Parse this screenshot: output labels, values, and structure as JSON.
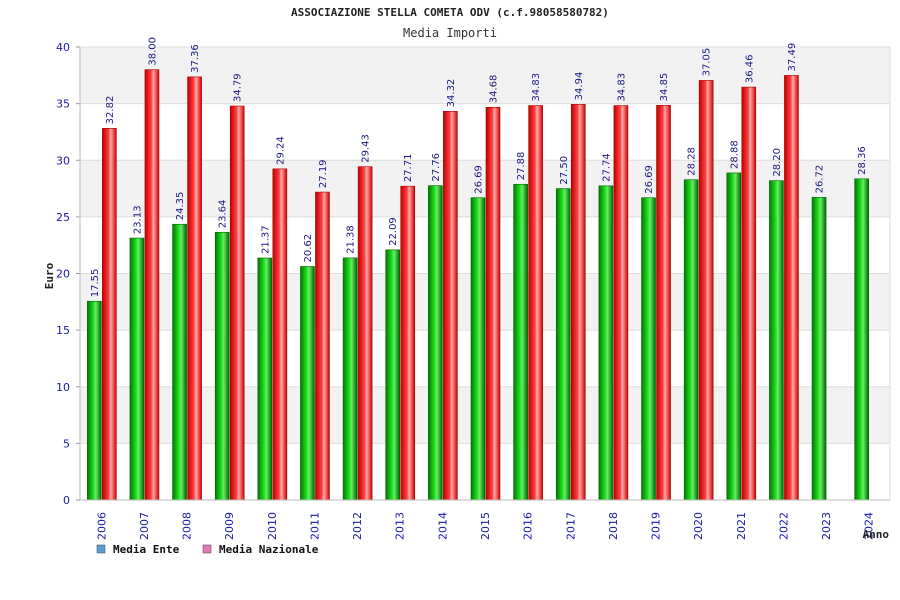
{
  "chart_data": {
    "type": "bar",
    "title": "ASSOCIAZIONE STELLA COMETA ODV (c.f.98058580782)",
    "subtitle": "Media Importi",
    "xlabel": "Anno",
    "ylabel": "Euro",
    "ylim": [
      0,
      40
    ],
    "yticks": [
      0,
      5,
      10,
      15,
      20,
      25,
      30,
      35,
      40
    ],
    "grid": true,
    "legend_position": "bottom-left",
    "categories": [
      "2006",
      "2007",
      "2008",
      "2009",
      "2010",
      "2011",
      "2012",
      "2013",
      "2014",
      "2015",
      "2016",
      "2017",
      "2018",
      "2019",
      "2020",
      "2021",
      "2022",
      "2023",
      "2024"
    ],
    "series": [
      {
        "name": "Media Ente",
        "color": "#00aa00",
        "legend_color": "#5b9bd5",
        "values": [
          17.55,
          23.13,
          24.35,
          23.64,
          21.37,
          20.62,
          21.38,
          22.09,
          27.76,
          26.69,
          27.88,
          27.5,
          27.74,
          26.69,
          28.28,
          28.88,
          28.2,
          26.72,
          28.36
        ],
        "labels": [
          "17.55",
          "23.13",
          "24.35",
          "23.64",
          "21.37",
          "20.62",
          "21.38",
          "22.09",
          "27.76",
          "26.69",
          "27.88",
          "27.50",
          "27.74",
          "26.69",
          "28.28",
          "28.88",
          "28.20",
          "26.72",
          "28.36"
        ]
      },
      {
        "name": "Media Nazionale",
        "color": "#ee1111",
        "legend_color": "#e377b5",
        "values": [
          32.82,
          38.0,
          37.36,
          34.79,
          29.24,
          27.19,
          29.43,
          27.71,
          34.32,
          34.68,
          34.83,
          34.94,
          34.83,
          34.85,
          37.05,
          36.46,
          37.49,
          null,
          null
        ],
        "labels": [
          "32.82",
          "38.00",
          "37.36",
          "34.79",
          "29.24",
          "27.19",
          "29.43",
          "27.71",
          "34.32",
          "34.68",
          "34.83",
          "34.94",
          "34.83",
          "34.85",
          "37.05",
          "36.46",
          "37.49",
          null,
          null
        ]
      }
    ]
  }
}
